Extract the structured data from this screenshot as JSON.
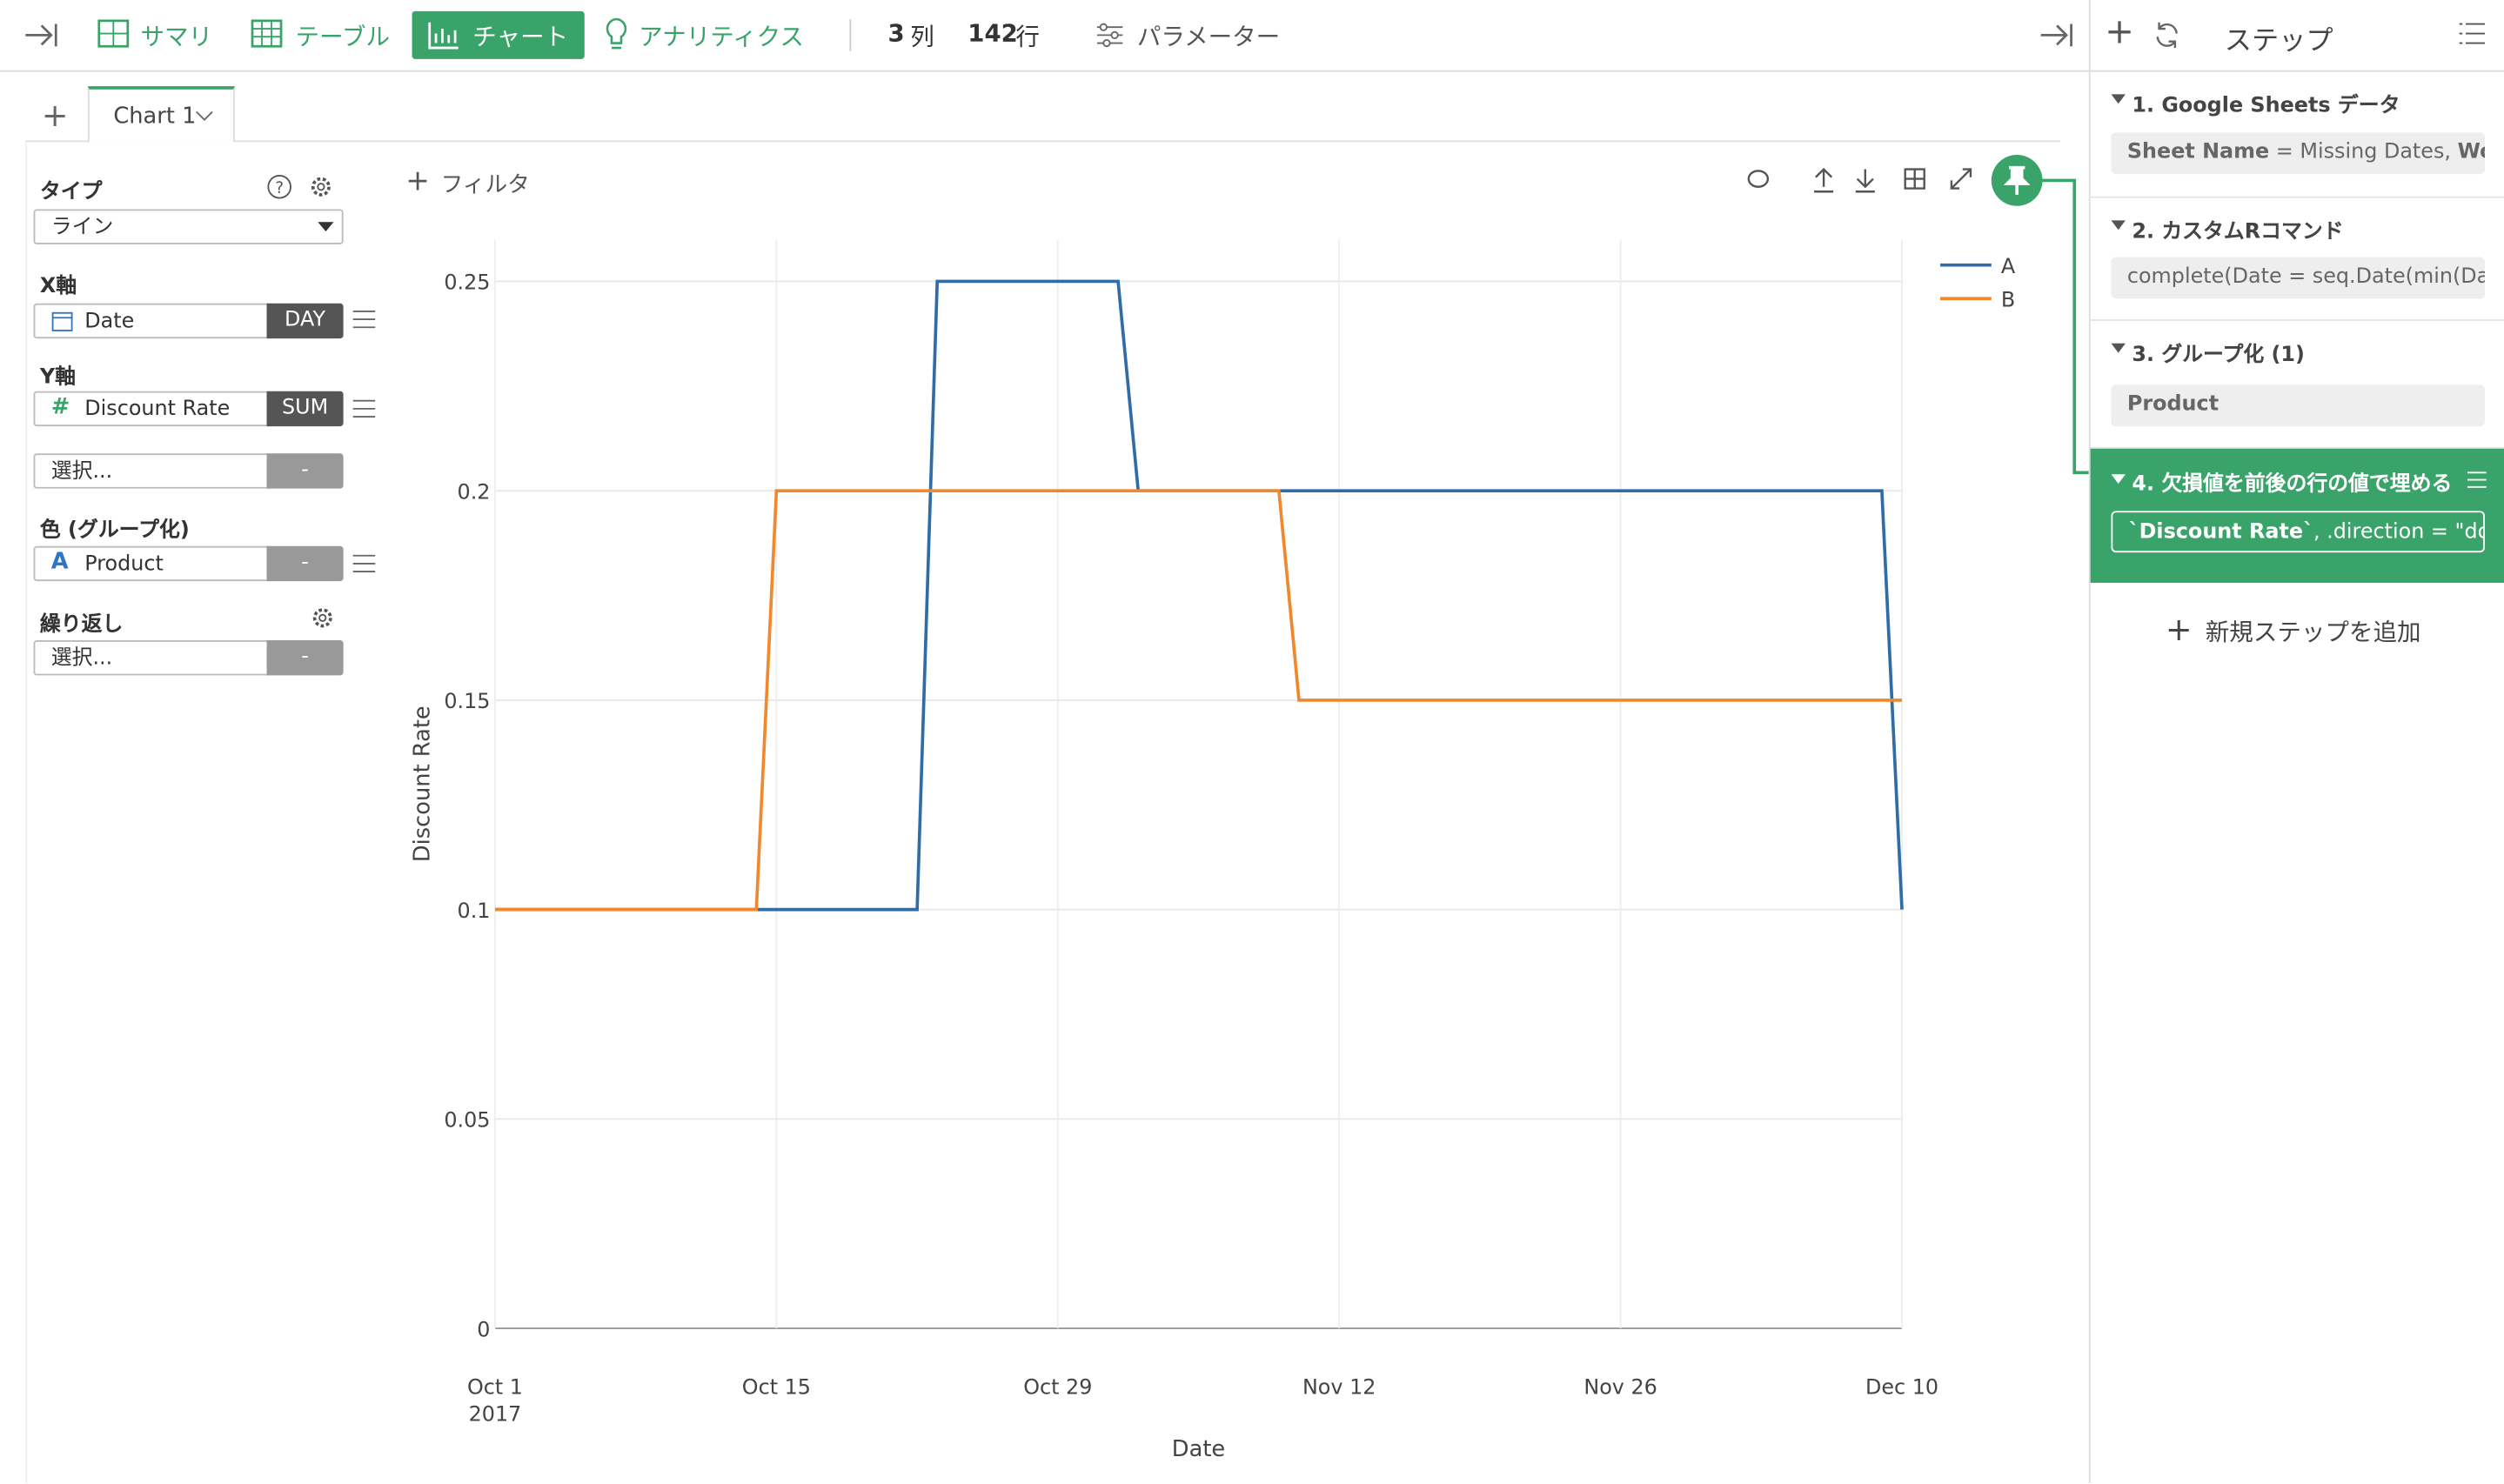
{
  "toolbar": {
    "items": [
      "サマリ",
      "テーブル",
      "チャート",
      "アナリティクス"
    ],
    "columns_count": 3,
    "columns_label": "列",
    "rows_count": 142,
    "rows_label": "行",
    "parameters": "パラメーター"
  },
  "tabs": [
    "Chart 1"
  ],
  "settings": {
    "type_label": "タイプ",
    "type_value": "ライン",
    "x_label": "X軸",
    "x_field": "Date",
    "x_agg": "DAY",
    "y_label": "Y軸",
    "y_field": "Discount Rate",
    "y_agg": "SUM",
    "y2_placeholder": "選択...",
    "y2_agg": "-",
    "color_label": "色 (グループ化)",
    "color_field": "Product",
    "color_agg": "-",
    "repeat_label": "繰り返し",
    "repeat_placeholder": "選択...",
    "repeat_agg": "-"
  },
  "filter": "フィルタ",
  "steps_panel": {
    "title": "ステップ",
    "steps": [
      {
        "title": "1. Google Sheets データ",
        "detail": [
          "Sheet Name",
          " = Missing Dates, ",
          "Wor…"
        ]
      },
      {
        "title": "2. カスタムRコマンド",
        "detail": [
          "complete(Date = seq.Date(min(Date…"
        ]
      },
      {
        "title": "3. グループ化 (1)",
        "detail": [
          "Product"
        ]
      },
      {
        "title": "4. 欠損値を前後の行の値で埋める",
        "detail": [
          "`Discount Rate`",
          ", .direction = \"down\""
        ]
      }
    ],
    "add": "新規ステップを追加"
  },
  "chart_data": {
    "type": "line",
    "x_label": "Date",
    "y_label": "Discount Rate",
    "xlim": [
      "2017-10-01",
      "2017-12-10"
    ],
    "xticks": [
      {
        "value": "2017-10-01",
        "label": "Oct 1\n2017"
      },
      {
        "value": "2017-10-15",
        "label": "Oct 15"
      },
      {
        "value": "2017-10-29",
        "label": "Oct 29"
      },
      {
        "value": "2017-11-12",
        "label": "Nov 12"
      },
      {
        "value": "2017-11-26",
        "label": "Nov 26"
      },
      {
        "value": "2017-12-10",
        "label": "Dec 10"
      }
    ],
    "ylim": [
      0,
      0.26
    ],
    "yticks": [
      0,
      0.05,
      0.1,
      0.15,
      0.2,
      0.25
    ],
    "grid": true,
    "legend": "top-right",
    "series": [
      {
        "name": "A",
        "color": "#2f6ca8",
        "x": [
          "2017-10-01",
          "2017-10-22",
          "2017-10-23",
          "2017-11-01",
          "2017-11-02",
          "2017-12-09",
          "2017-12-10"
        ],
        "values": [
          0.1,
          0.1,
          0.25,
          0.25,
          0.2,
          0.2,
          0.1
        ]
      },
      {
        "name": "B",
        "color": "#f0882d",
        "x": [
          "2017-10-01",
          "2017-10-14",
          "2017-10-15",
          "2017-11-09",
          "2017-11-10",
          "2017-12-10"
        ],
        "values": [
          0.1,
          0.1,
          0.2,
          0.2,
          0.15,
          0.15
        ]
      }
    ]
  }
}
